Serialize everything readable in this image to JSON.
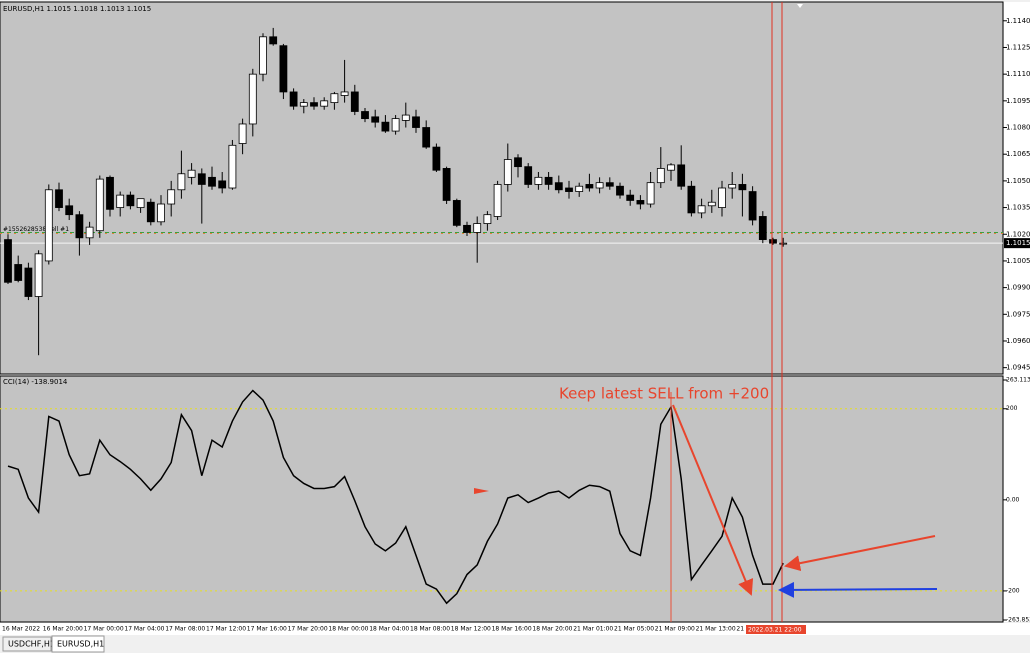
{
  "chart_data": [
    {
      "type": "candlestick",
      "title": "EURUSD,H1  1.1015 1.1018 1.1013 1.1015",
      "categories": [
        "16 Mar 2022",
        null,
        null,
        null,
        "16 Mar 20:00",
        null,
        null,
        null,
        "17 Mar 00:00",
        null,
        null,
        null,
        "17 Mar 04:00",
        null,
        null,
        null,
        "17 Mar 08:00",
        null,
        null,
        null,
        "17 Mar 12:00",
        null,
        null,
        null,
        "17 Mar 16:00",
        null,
        null,
        null,
        "17 Mar 20:00",
        null,
        null,
        null,
        "18 Mar 00:00",
        null,
        null,
        null,
        "18 Mar 04:00",
        null,
        null,
        null,
        "18 Mar 08:00",
        null,
        null,
        null,
        "18 Mar 12:00",
        null,
        null,
        null,
        "18 Mar 16:00",
        null,
        null,
        null,
        "18 Mar 20:00",
        null,
        null,
        null,
        "21 Mar 01:00",
        null,
        null,
        null,
        "21 Mar 05:00",
        null,
        null,
        null,
        "21 Mar 09:00",
        null,
        null,
        null,
        "21 Mar 13:00",
        null,
        null,
        null,
        "21 Ma",
        null,
        null,
        null,
        null
      ],
      "open": [
        1.1017,
        1.1003,
        1.1001,
        1.0985,
        1.1005,
        1.1045,
        1.1036,
        1.1031,
        1.1018,
        1.1022,
        1.1052,
        1.1035,
        1.1042,
        1.1035,
        1.1038,
        1.1027,
        1.1037,
        1.1045,
        1.1052,
        1.1054,
        1.1052,
        1.105,
        1.1046,
        1.1071,
        1.1082,
        1.111,
        1.1131,
        1.1126,
        1.11,
        1.1092,
        1.1094,
        1.1092,
        1.1094,
        1.1098,
        1.11,
        1.1089,
        1.1086,
        1.1083,
        1.1078,
        1.1084,
        1.1086,
        1.108,
        1.1069,
        1.1057,
        1.1039,
        1.1025,
        1.1021,
        1.1026,
        1.103,
        1.1048,
        1.1063,
        1.1058,
        1.1048,
        1.1052,
        1.1049,
        1.1046,
        1.1044,
        1.1048,
        1.1046,
        1.1049,
        1.1047,
        1.1042,
        1.1039,
        1.1037,
        1.1049,
        1.1056,
        1.1059,
        1.1047,
        1.1032,
        1.1036,
        1.1035,
        1.1046,
        1.1048,
        1.1044,
        1.103,
        1.1017,
        1.1015
      ],
      "high": [
        1.102,
        1.1008,
        1.1004,
        1.1011,
        1.1048,
        1.1049,
        1.104,
        1.1033,
        1.1027,
        1.1053,
        1.1053,
        1.1044,
        1.1044,
        1.104,
        1.104,
        1.1042,
        1.105,
        1.1067,
        1.106,
        1.1057,
        1.1058,
        1.1055,
        1.1073,
        1.1085,
        1.1113,
        1.1133,
        1.1136,
        1.1127,
        1.1102,
        1.1096,
        1.1097,
        1.1097,
        1.11,
        1.1118,
        1.1104,
        1.1091,
        1.109,
        1.1087,
        1.1087,
        1.1094,
        1.109,
        1.1084,
        1.1071,
        1.1058,
        1.104,
        1.1027,
        1.103,
        1.1033,
        1.105,
        1.1071,
        1.1065,
        1.106,
        1.1055,
        1.1055,
        1.1053,
        1.105,
        1.1049,
        1.1054,
        1.1052,
        1.1052,
        1.1049,
        1.1045,
        1.1042,
        1.1055,
        1.1069,
        1.106,
        1.107,
        1.105,
        1.104,
        1.1045,
        1.105,
        1.1055,
        1.1054,
        1.1047,
        1.1033,
        1.1018,
        1.1018
      ],
      "low": [
        1.0992,
        1.0993,
        1.0983,
        1.0952,
        1.1003,
        1.1033,
        1.1028,
        1.1008,
        1.1014,
        1.1018,
        1.103,
        1.103,
        1.1034,
        1.1032,
        1.1025,
        1.1025,
        1.103,
        1.104,
        1.1048,
        1.1026,
        1.1045,
        1.1043,
        1.1045,
        1.1065,
        1.1075,
        1.1106,
        1.1126,
        1.1096,
        1.109,
        1.1088,
        1.109,
        1.109,
        1.109,
        1.1094,
        1.1087,
        1.1083,
        1.108,
        1.1077,
        1.1076,
        1.108,
        1.1077,
        1.1068,
        1.1055,
        1.1037,
        1.1024,
        1.1019,
        1.1004,
        1.1022,
        1.1028,
        1.1044,
        1.1052,
        1.1046,
        1.1045,
        1.1045,
        1.1043,
        1.104,
        1.1041,
        1.1044,
        1.1043,
        1.1045,
        1.104,
        1.1036,
        1.1034,
        1.1035,
        1.1046,
        1.105,
        1.1045,
        1.103,
        1.1029,
        1.1032,
        1.103,
        1.104,
        1.103,
        1.1025,
        1.1015,
        1.1014,
        1.1013
      ],
      "close": [
        1.0993,
        1.0994,
        1.0985,
        1.1009,
        1.1045,
        1.1035,
        1.1031,
        1.1018,
        1.1024,
        1.1051,
        1.1034,
        1.1042,
        1.1036,
        1.104,
        1.1027,
        1.1037,
        1.1045,
        1.1054,
        1.1056,
        1.1048,
        1.1047,
        1.1046,
        1.107,
        1.1082,
        1.111,
        1.1131,
        1.1127,
        1.11,
        1.1092,
        1.1094,
        1.1092,
        1.1095,
        1.1099,
        1.11,
        1.1089,
        1.1085,
        1.1083,
        1.1078,
        1.1085,
        1.1087,
        1.108,
        1.1069,
        1.1056,
        1.1039,
        1.1025,
        1.1021,
        1.1026,
        1.1031,
        1.1048,
        1.1062,
        1.1058,
        1.1048,
        1.1052,
        1.1048,
        1.1045,
        1.1044,
        1.1047,
        1.1046,
        1.1049,
        1.1047,
        1.1042,
        1.1039,
        1.1037,
        1.1049,
        1.1057,
        1.1059,
        1.1047,
        1.1032,
        1.1036,
        1.1038,
        1.1046,
        1.1048,
        1.1045,
        1.1028,
        1.1017,
        1.1015,
        1.1015
      ],
      "ylim": [
        1.0942,
        1.115
      ],
      "yticks": [
        {
          "value": 1.114,
          "label": "1.1140"
        },
        1.1125,
        {
          "value": 1.111,
          "label": "1.1110"
        },
        1.1095,
        {
          "value": 1.108,
          "label": "1.1080"
        },
        1.1065,
        {
          "value": 1.105,
          "label": "1.1050"
        },
        1.1035,
        {
          "value": 1.102,
          "label": "1.1020"
        },
        1.1005,
        {
          "value": 1.099,
          "label": "1.0990"
        },
        1.0975,
        {
          "value": 1.096,
          "label": "1.0960"
        },
        1.0945
      ],
      "price_line": {
        "value": 1.1015,
        "label": "1.1015"
      },
      "order_line": {
        "value": 1.1021,
        "label": "#1552628538 sell #1"
      },
      "grid": false
    },
    {
      "type": "line",
      "title": "CCI(14) -138.9014",
      "color": "#000000",
      "values": [
        74,
        67,
        4,
        -27,
        183,
        173,
        99,
        53,
        57,
        131,
        99,
        84,
        67,
        46,
        21,
        46,
        82,
        187,
        152,
        53,
        131,
        116,
        173,
        215,
        240,
        219,
        173,
        93,
        53,
        36,
        25,
        25,
        29,
        51,
        -2,
        -59,
        -97,
        -112,
        -95,
        -59,
        -122,
        -185,
        -196,
        -227,
        -206,
        -164,
        -143,
        -91,
        -53,
        4,
        11,
        -6,
        4,
        15,
        19,
        4,
        21,
        32,
        29,
        19,
        -74,
        -112,
        -122,
        4,
        166,
        204,
        46,
        -175,
        -143,
        -112,
        -80,
        4,
        -38,
        -122,
        -185,
        -185,
        -139
      ],
      "ylim": [
        -263.853,
        263.1137
      ],
      "yticks": [
        263.1137,
        200,
        {
          "value": 0,
          "label": "0.00"
        },
        -200,
        -263.853
      ],
      "levels": [
        200,
        -200
      ],
      "annotation": "Keep latest SELL from +200"
    }
  ],
  "time_marker": "2022.03.21 22:00",
  "tabs": [
    "USDCHF,H1",
    "EURUSD,H1"
  ]
}
